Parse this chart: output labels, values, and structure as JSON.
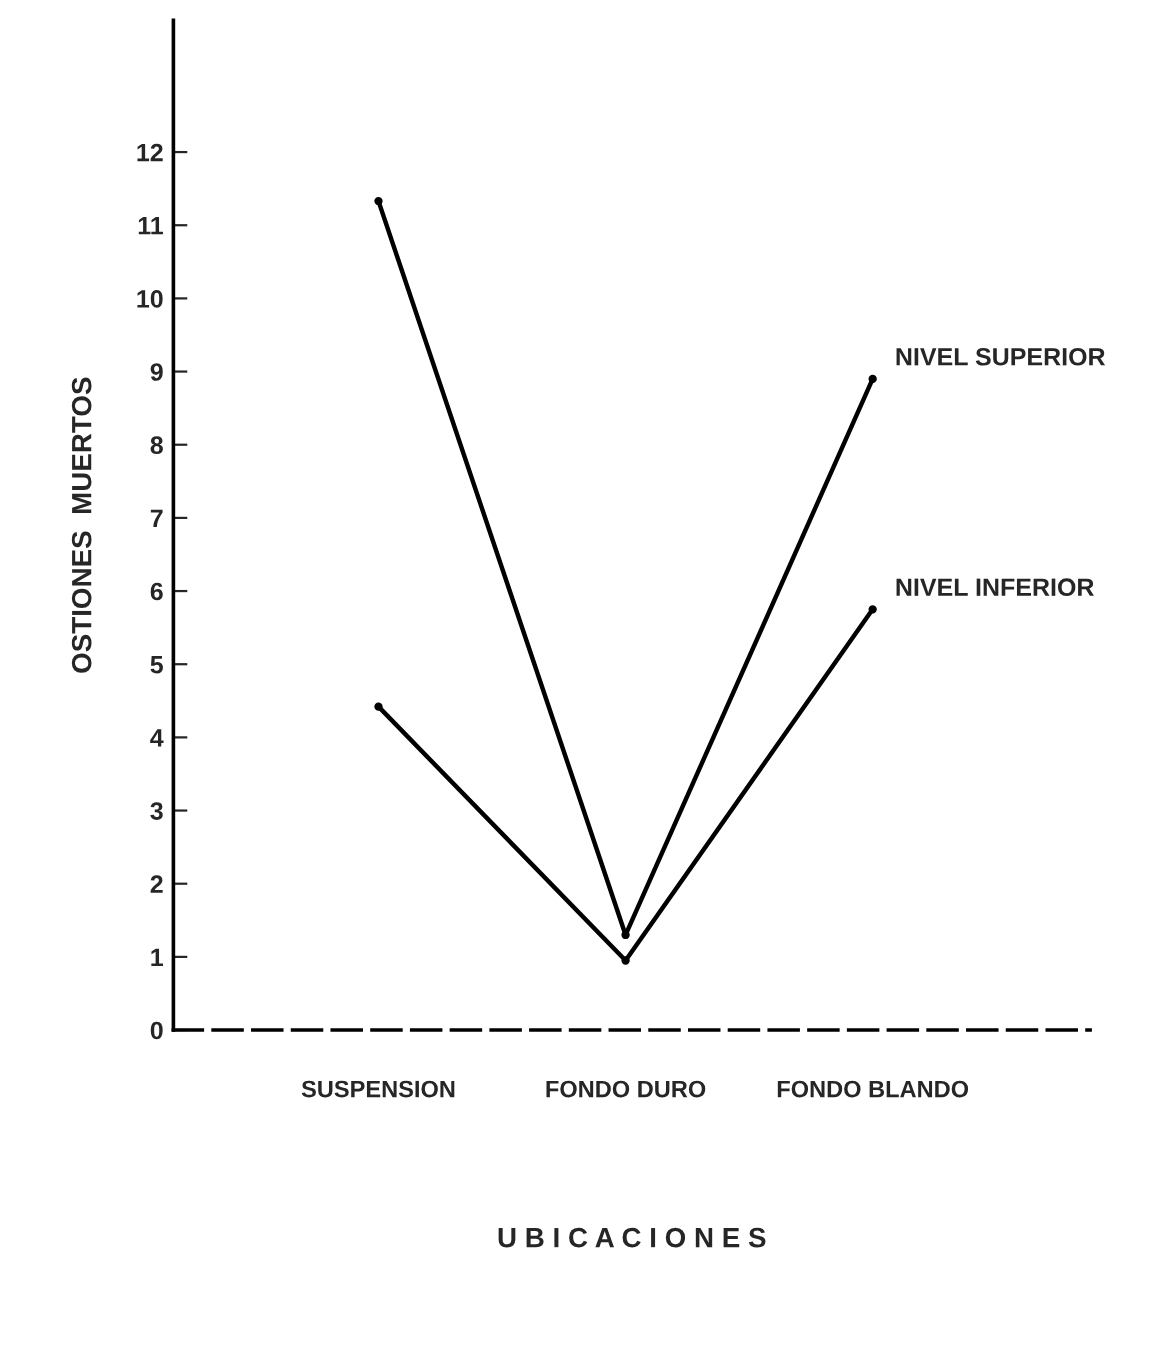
{
  "chart_data": {
    "type": "line",
    "xlabel": "U B I C A C I O N E S",
    "ylabel": "OSTIONES  MUERTOS",
    "categories": [
      "SUSPENSION",
      "FONDO DURO",
      "FONDO BLANDO"
    ],
    "series": [
      {
        "name": "NIVEL SUPERIOR",
        "color": "#000000",
        "values": [
          11.33,
          1.3,
          8.9
        ]
      },
      {
        "name": "NIVEL INFERIOR",
        "color": "#000000",
        "values": [
          4.42,
          0.95,
          5.75
        ]
      }
    ],
    "ylim": [
      0,
      13.8
    ],
    "yticks": [
      0,
      1,
      2,
      3,
      4,
      5,
      6,
      7,
      8,
      9,
      10,
      11,
      12
    ],
    "grid": false,
    "legend": false,
    "marker": "circle",
    "line_style": "solid"
  }
}
